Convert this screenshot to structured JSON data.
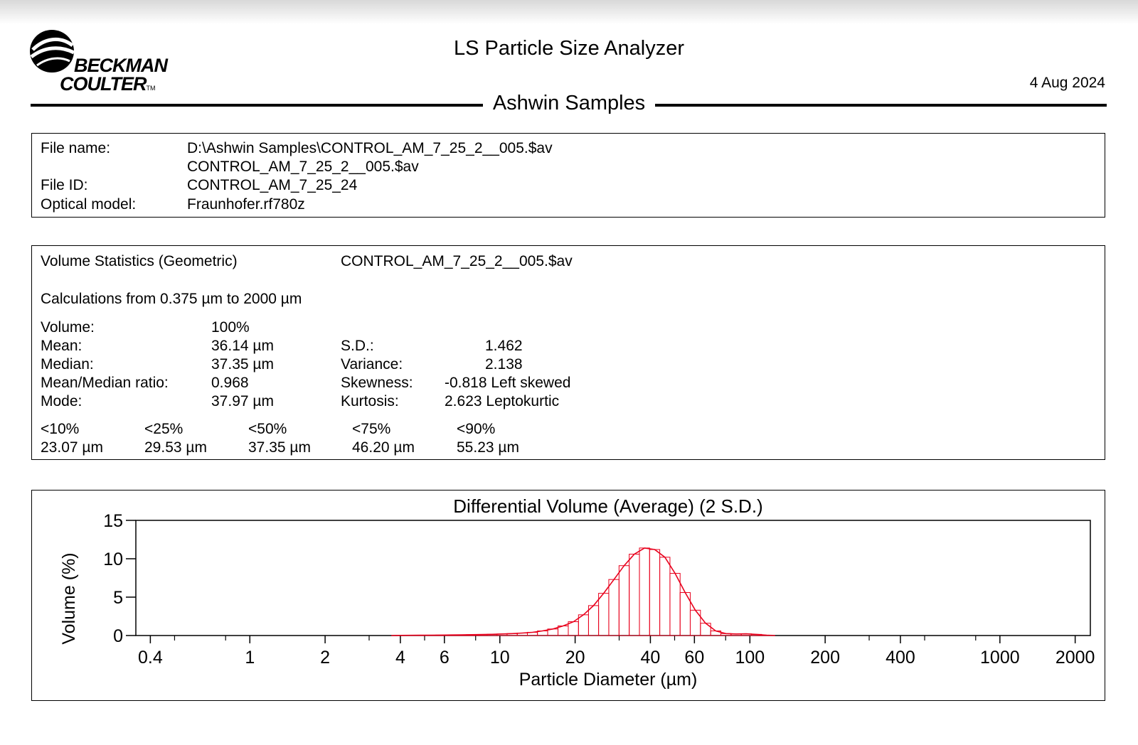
{
  "header": {
    "brand_line1": "BECKMAN",
    "brand_line2": "COULTER",
    "brand_tm": "TM",
    "app_title": "LS Particle Size Analyzer",
    "date": "4 Aug 2024",
    "sample_title": "Ashwin Samples"
  },
  "file_info": {
    "file_name_label": "File name:",
    "file_name_path": "D:\\Ashwin Samples\\CONTROL_AM_7_25_2__005.$av",
    "file_name_file": "CONTROL_AM_7_25_2__005.$av",
    "file_id_label": "File ID:",
    "file_id": "CONTROL_AM_7_25_24",
    "optical_model_label": "Optical model:",
    "optical_model": "Fraunhofer.rf780z"
  },
  "stats": {
    "heading": "Volume Statistics (Geometric)",
    "file": "CONTROL_AM_7_25_2__005.$av",
    "calc_range": "Calculations from 0.375 µm to 2000 µm",
    "rows": [
      {
        "label": "Volume:",
        "value": "100%"
      },
      {
        "label": "Mean:",
        "value": "36.14 µm",
        "label2": "S.D.:",
        "value2": "1.462"
      },
      {
        "label": "Median:",
        "value": "37.35 µm",
        "label2": "Variance:",
        "value2": "2.138"
      },
      {
        "label": "Mean/Median ratio:",
        "value": "0.968",
        "label2": "Skewness:",
        "value2": "-0.818 Left skewed"
      },
      {
        "label": "Mode:",
        "value": "37.97 µm",
        "label2": "Kurtosis:",
        "value2": "2.623 Leptokurtic"
      }
    ],
    "percentiles": [
      {
        "label": "<10%",
        "value": "23.07 µm"
      },
      {
        "label": "<25%",
        "value": "29.53 µm"
      },
      {
        "label": "<50%",
        "value": "37.35 µm"
      },
      {
        "label": "<75%",
        "value": "46.20 µm"
      },
      {
        "label": "<90%",
        "value": "55.23 µm"
      }
    ]
  },
  "chart_data": {
    "type": "bar",
    "title": "Differential Volume (Average) (2 S.D.)",
    "xlabel": "Particle Diameter (µm)",
    "ylabel": "Volume (%)",
    "xscale": "log",
    "xlim": [
      0.35,
      2300
    ],
    "ylim": [
      0,
      15
    ],
    "xticks": [
      0.4,
      1,
      2,
      4,
      6,
      10,
      20,
      40,
      60,
      100,
      200,
      400,
      1000,
      2000
    ],
    "yticks": [
      0,
      5,
      10,
      15
    ],
    "color": "#e8001c",
    "series": [
      {
        "x": [
          4.0,
          4.4,
          4.8,
          5.3,
          5.8,
          6.4,
          7.0,
          7.7,
          8.5,
          9.3,
          10.2,
          11.2,
          12.3,
          13.5,
          14.8,
          16.3,
          17.9,
          19.7,
          21.6,
          23.7,
          26.0,
          28.6,
          31.4,
          34.5,
          37.9,
          41.6,
          45.7,
          50.2,
          55.1,
          60.5,
          66.5,
          73.0,
          80.2,
          88.1,
          96.8,
          106.3,
          116.8
        ],
        "values": [
          0.02,
          0.03,
          0.04,
          0.05,
          0.06,
          0.07,
          0.09,
          0.11,
          0.13,
          0.16,
          0.2,
          0.25,
          0.32,
          0.42,
          0.6,
          0.85,
          1.25,
          1.8,
          2.7,
          3.9,
          5.5,
          7.3,
          9.1,
          10.6,
          11.4,
          11.2,
          10.2,
          8.1,
          5.6,
          3.3,
          1.6,
          0.6,
          0.25,
          0.2,
          0.22,
          0.15,
          0.05
        ]
      }
    ]
  }
}
